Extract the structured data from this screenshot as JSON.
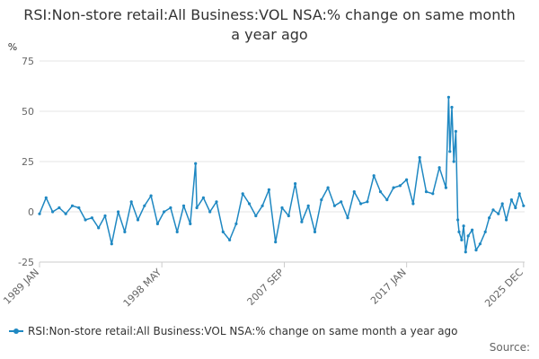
{
  "chart_data": {
    "type": "line",
    "title": "RSI:Non-store retail:All Business:VOL NSA:% change on same month a year ago",
    "ylabel": "%",
    "ylim": [
      -25,
      75
    ],
    "yticks": [
      -25,
      0,
      25,
      50,
      75
    ],
    "xlim": [
      1989.0,
      2026.0
    ],
    "xticks": [
      {
        "label": "1989 JAN",
        "value": 1989.0
      },
      {
        "label": "1998 MAY",
        "value": 1998.33
      },
      {
        "label": "2007 SEP",
        "value": 2007.67
      },
      {
        "label": "2017 JAN",
        "value": 2017.0
      },
      {
        "label": "2025 DEC",
        "value": 2025.92
      }
    ],
    "series": [
      {
        "name": "RSI:Non-store retail:All Business:VOL NSA:% change on same month a year ago",
        "color": "#1f88c2",
        "x": [
          1989.0,
          1989.5,
          1990.0,
          1990.5,
          1991.0,
          1991.5,
          1992.0,
          1992.5,
          1993.0,
          1993.5,
          1994.0,
          1994.5,
          1995.0,
          1995.5,
          1996.0,
          1996.5,
          1997.0,
          1997.5,
          1998.0,
          1998.5,
          1999.0,
          1999.5,
          2000.0,
          2000.5,
          2000.9,
          2001.0,
          2001.5,
          2002.0,
          2002.5,
          2003.0,
          2003.5,
          2004.0,
          2004.5,
          2005.0,
          2005.5,
          2006.0,
          2006.5,
          2007.0,
          2007.5,
          2008.0,
          2008.5,
          2009.0,
          2009.5,
          2010.0,
          2010.5,
          2011.0,
          2011.5,
          2012.0,
          2012.5,
          2013.0,
          2013.5,
          2014.0,
          2014.5,
          2015.0,
          2015.5,
          2016.0,
          2016.5,
          2017.0,
          2017.5,
          2018.0,
          2018.5,
          2019.0,
          2019.5,
          2020.0,
          2020.2,
          2020.3,
          2020.45,
          2020.6,
          2020.75,
          2020.9,
          2021.0,
          2021.2,
          2021.35,
          2021.5,
          2021.7,
          2022.0,
          2022.3,
          2022.6,
          2023.0,
          2023.3,
          2023.6,
          2024.0,
          2024.3,
          2024.6,
          2025.0,
          2025.3,
          2025.6,
          2025.92
        ],
        "values": [
          -1,
          7,
          0,
          2,
          -1,
          3,
          2,
          -4,
          -3,
          -8,
          -2,
          -16,
          0,
          -10,
          5,
          -4,
          3,
          8,
          -6,
          0,
          2,
          -10,
          3,
          -6,
          24,
          2,
          7,
          0,
          5,
          -10,
          -14,
          -6,
          9,
          4,
          -2,
          3,
          11,
          -15,
          2,
          -2,
          14,
          -5,
          3,
          -10,
          6,
          12,
          3,
          5,
          -3,
          10,
          4,
          5,
          18,
          10,
          6,
          12,
          13,
          16,
          4,
          27,
          10,
          9,
          22,
          12,
          57,
          30,
          52,
          25,
          40,
          -4,
          -10,
          -14,
          -7,
          -20,
          -12,
          -9,
          -19,
          -16,
          -10,
          -3,
          1,
          -1,
          4,
          -4,
          6,
          2,
          9,
          3
        ]
      }
    ]
  },
  "legend": {
    "label": "RSI:Non-store retail:All Business:VOL NSA:% change on same month a year ago"
  },
  "source": {
    "label": "Source:"
  }
}
